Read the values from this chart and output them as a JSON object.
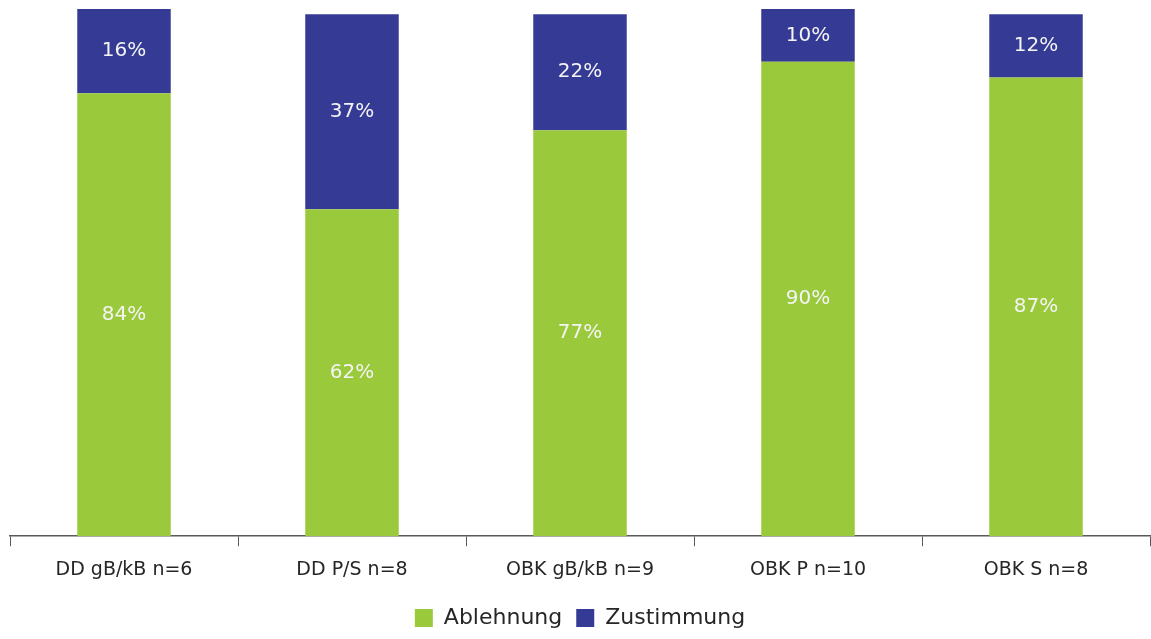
{
  "chart_data": {
    "type": "bar",
    "stacked": true,
    "categories": [
      "DD gB/kB n=6",
      "DD P/S n=8",
      "OBK gB/kB n=9",
      "OBK P n=10",
      "OBK S n=8"
    ],
    "series": [
      {
        "name": "Ablehnung",
        "color": "#9aca3c",
        "values": [
          84,
          62,
          77,
          90,
          87
        ],
        "value_labels": [
          "84%",
          "62%",
          "77%",
          "90%",
          "87%"
        ]
      },
      {
        "name": "Zustimmung",
        "color": "#353a94",
        "values": [
          16,
          37,
          22,
          10,
          12
        ],
        "value_labels": [
          "16%",
          "37%",
          "22%",
          "10%",
          "12%"
        ]
      }
    ],
    "ylim": [
      0,
      100
    ],
    "legend": "bottom"
  }
}
